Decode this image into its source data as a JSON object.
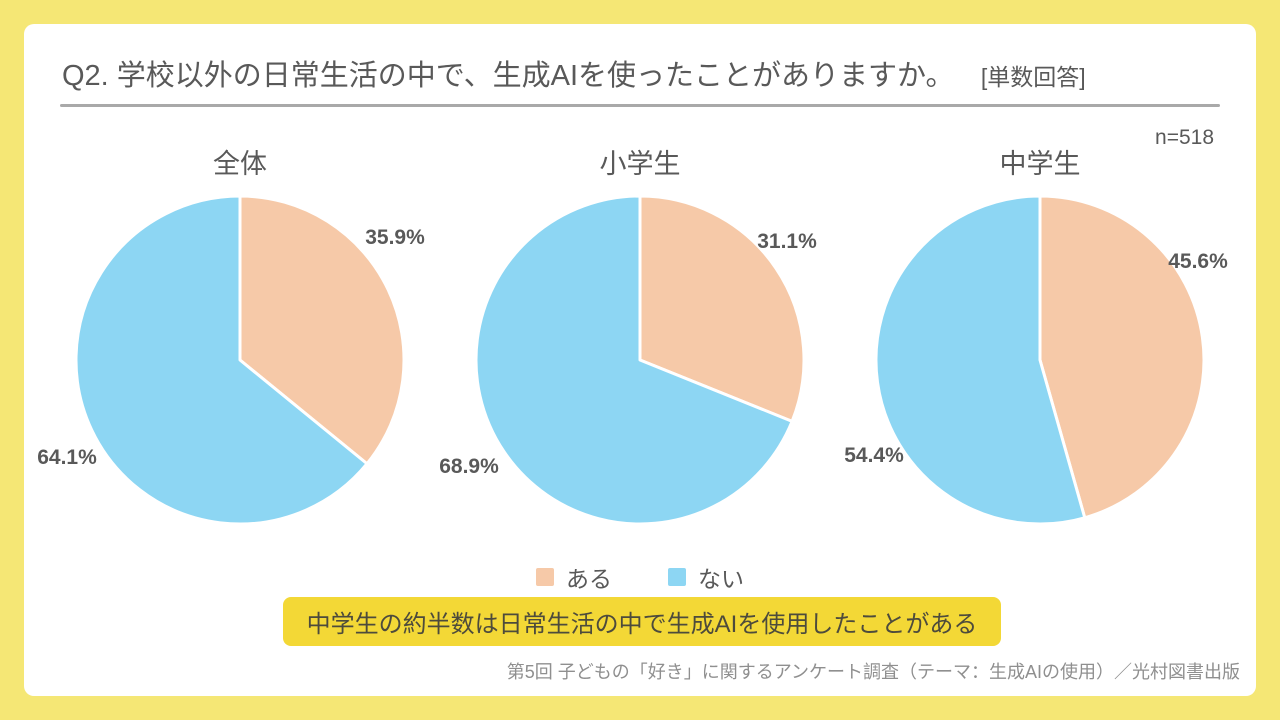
{
  "header": {
    "title": "Q2. 学校以外の日常生活の中で、生成AIを使ったことがありますか。",
    "answer_type": "[単数回答]",
    "sample_size": "n=518"
  },
  "colors": {
    "frame_yellow": "#f5e775",
    "highlight_yellow": "#f3d836",
    "aru_pink": "#f6c9a8",
    "nai_blue": "#8dd6f3",
    "text_gray": "#595959"
  },
  "legend": {
    "items": [
      {
        "label": "ある",
        "color": "#f6c9a8"
      },
      {
        "label": "ない",
        "color": "#8dd6f3"
      }
    ]
  },
  "highlight": {
    "text": "中学生の約半数は日常生活の中で生成AIを使用したことがある"
  },
  "footer": {
    "source": "第5回 子どもの「好き」に関するアンケート調査（テーマ：生成AIの使用）／光村図書出版"
  },
  "chart_data": [
    {
      "type": "pie",
      "title": "全体",
      "start_angle_deg": 0,
      "direction": "clockwise",
      "slices": [
        {
          "name": "ある",
          "value": 35.9,
          "label": "35.9%",
          "color": "#f6c9a8"
        },
        {
          "name": "ない",
          "value": 64.1,
          "label": "64.1%",
          "color": "#8dd6f3"
        }
      ]
    },
    {
      "type": "pie",
      "title": "小学生",
      "start_angle_deg": 0,
      "direction": "clockwise",
      "slices": [
        {
          "name": "ある",
          "value": 31.1,
          "label": "31.1%",
          "color": "#f6c9a8"
        },
        {
          "name": "ない",
          "value": 68.9,
          "label": "68.9%",
          "color": "#8dd6f3"
        }
      ]
    },
    {
      "type": "pie",
      "title": "中学生",
      "start_angle_deg": 0,
      "direction": "clockwise",
      "slices": [
        {
          "name": "ある",
          "value": 45.6,
          "label": "45.6%",
          "color": "#f6c9a8"
        },
        {
          "name": "ない",
          "value": 54.4,
          "label": "54.4%",
          "color": "#8dd6f3"
        }
      ]
    }
  ]
}
